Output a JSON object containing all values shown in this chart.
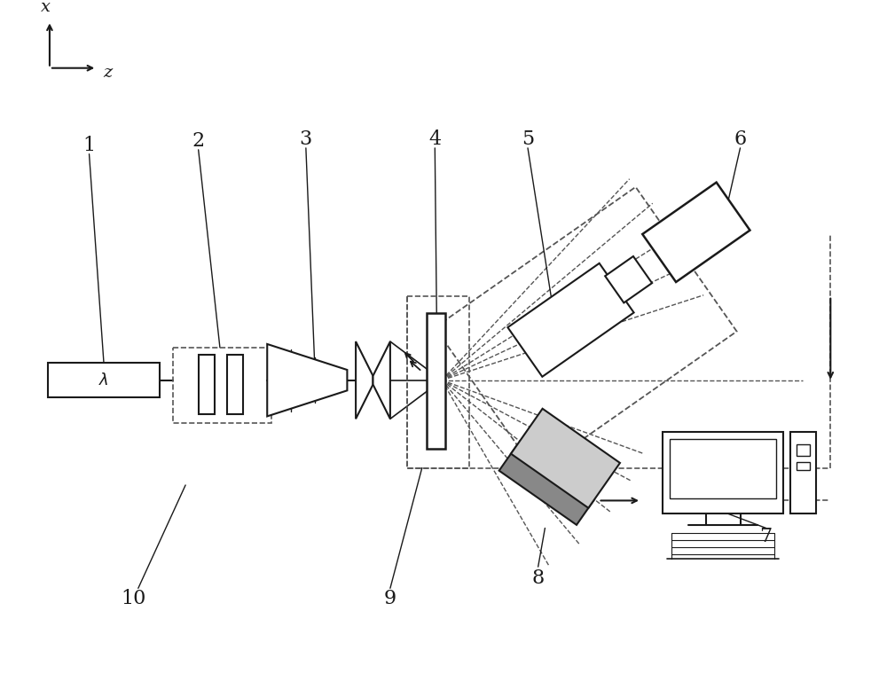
{
  "bg_color": "#ffffff",
  "lc": "#1a1a1a",
  "dc": "#555555",
  "gray_dark": "#888888",
  "gray_light": "#cccccc",
  "figsize": [
    10.0,
    7.69
  ],
  "dpi": 100
}
